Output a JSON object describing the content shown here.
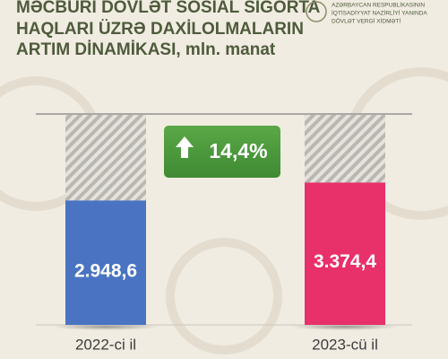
{
  "chart_data": {
    "type": "bar",
    "title_lines": [
      "MƏCBURİ DÖVLƏT SOSİAL SIGORTA",
      "HAQLARI ÜZRƏ DAXİLOLMALARIN",
      "ARTIM DİNAMİKASI, mln. manat"
    ],
    "logo_lines": [
      "AZƏRBAYCAN RESPUBLİKASININ",
      "İQTİSADİYYAT NAZİRLİYİ YANINDA",
      "DÖVLƏT VERGİ XİDMƏTİ"
    ],
    "categories": [
      "2022-ci il",
      "2023-cü il"
    ],
    "values": [
      2948.6,
      3374.4
    ],
    "value_labels": [
      "2.948,6",
      "3.374,4"
    ],
    "colors": [
      "#4a74c2",
      "#e8306a"
    ],
    "annotation": "14,4%",
    "ylim": [
      0,
      5000
    ]
  }
}
